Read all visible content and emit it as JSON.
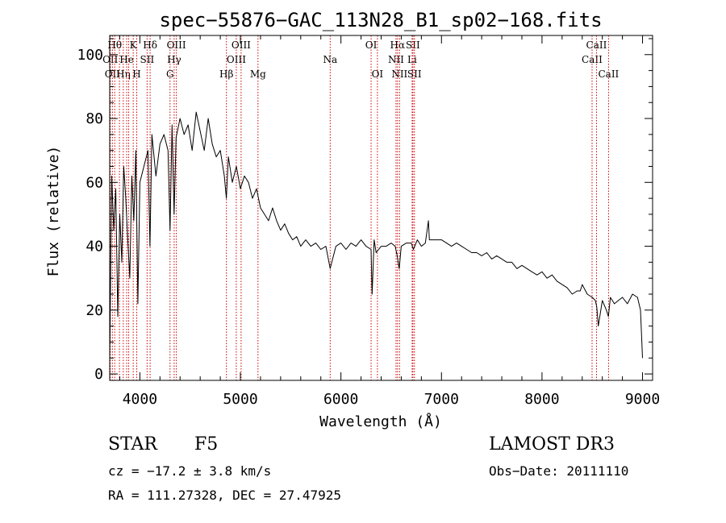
{
  "chart_data": {
    "type": "line",
    "title": "spec−55876−GAC_113N28_B1_sp02−168.fits",
    "xlabel": "Wavelength (Å)",
    "ylabel": "Flux (relative)",
    "xlim": [
      3700,
      9100
    ],
    "ylim": [
      -2,
      106
    ],
    "x_ticks": [
      4000,
      5000,
      6000,
      7000,
      8000,
      9000
    ],
    "y_ticks": [
      0,
      20,
      40,
      60,
      80,
      100
    ],
    "grid": false,
    "line_color": "#000000",
    "marker_color": "#cc0000",
    "series": [
      {
        "name": "flux",
        "x": [
          3700,
          3720,
          3740,
          3760,
          3780,
          3800,
          3820,
          3840,
          3860,
          3880,
          3900,
          3920,
          3940,
          3960,
          3980,
          4000,
          4040,
          4080,
          4100,
          4120,
          4160,
          4200,
          4240,
          4280,
          4300,
          4320,
          4340,
          4360,
          4400,
          4440,
          4480,
          4520,
          4560,
          4600,
          4640,
          4680,
          4720,
          4760,
          4800,
          4840,
          4860,
          4880,
          4920,
          4960,
          5000,
          5040,
          5080,
          5120,
          5160,
          5200,
          5240,
          5280,
          5320,
          5360,
          5400,
          5440,
          5480,
          5520,
          5560,
          5600,
          5650,
          5700,
          5750,
          5800,
          5850,
          5893,
          5950,
          6000,
          6050,
          6100,
          6150,
          6200,
          6250,
          6300,
          6310,
          6330,
          6350,
          6400,
          6450,
          6500,
          6540,
          6560,
          6580,
          6600,
          6650,
          6700,
          6720,
          6760,
          6800,
          6840,
          6870,
          6880,
          6900,
          6950,
          7000,
          7050,
          7100,
          7150,
          7200,
          7250,
          7300,
          7350,
          7400,
          7450,
          7500,
          7550,
          7600,
          7650,
          7700,
          7750,
          7800,
          7850,
          7900,
          7950,
          8000,
          8050,
          8100,
          8150,
          8200,
          8250,
          8300,
          8350,
          8380,
          8400,
          8450,
          8500,
          8530,
          8545,
          8560,
          8600,
          8640,
          8660,
          8680,
          8720,
          8760,
          8800,
          8850,
          8900,
          8950,
          8980,
          9000
        ],
        "y": [
          5,
          62,
          45,
          58,
          18,
          50,
          35,
          65,
          55,
          42,
          30,
          62,
          48,
          70,
          22,
          60,
          65,
          70,
          40,
          75,
          62,
          72,
          75,
          70,
          45,
          78,
          50,
          74,
          80,
          75,
          78,
          70,
          82,
          76,
          70,
          80,
          72,
          68,
          70,
          62,
          55,
          68,
          60,
          65,
          58,
          62,
          60,
          55,
          58,
          52,
          50,
          48,
          52,
          48,
          45,
          47,
          44,
          42,
          43,
          40,
          42,
          40,
          41,
          39,
          40,
          33,
          40,
          41,
          39,
          41,
          40,
          42,
          40,
          39,
          25,
          42,
          38,
          40,
          40,
          41,
          40,
          37,
          33,
          40,
          41,
          41,
          39,
          42,
          40,
          41,
          48,
          42,
          42,
          42,
          42,
          41,
          40,
          41,
          40,
          39,
          38,
          38,
          37,
          38,
          36,
          37,
          36,
          35,
          35,
          33,
          34,
          33,
          32,
          31,
          32,
          30,
          31,
          29,
          28,
          27,
          25,
          26,
          26,
          28,
          25,
          24,
          23,
          21,
          15,
          23,
          20,
          18,
          24,
          22,
          23,
          24,
          22,
          25,
          24,
          20,
          5
        ]
      }
    ],
    "line_markers": [
      {
        "x": 3706,
        "label": "OII",
        "row": 1
      },
      {
        "x": 3727,
        "label": "OII",
        "row": 2
      },
      {
        "x": 3750,
        "label": "Hθ",
        "row": 0
      },
      {
        "x": 3797,
        "label": "",
        "row": -1
      },
      {
        "x": 3835,
        "label": "Hη",
        "row": 2
      },
      {
        "x": 3869,
        "label": "He",
        "row": 1
      },
      {
        "x": 3889,
        "label": "",
        "row": -1
      },
      {
        "x": 3934,
        "label": "K",
        "row": 0
      },
      {
        "x": 3969,
        "label": "H",
        "row": 2
      },
      {
        "x": 4072,
        "label": "SII",
        "row": 1
      },
      {
        "x": 4102,
        "label": "Hδ",
        "row": 0
      },
      {
        "x": 4300,
        "label": "G",
        "row": 2
      },
      {
        "x": 4341,
        "label": "Hγ",
        "row": 1
      },
      {
        "x": 4363,
        "label": "OIII",
        "row": 0
      },
      {
        "x": 4861,
        "label": "Hβ",
        "row": 2
      },
      {
        "x": 4959,
        "label": "OIII",
        "row": 1
      },
      {
        "x": 5007,
        "label": "OIII",
        "row": 0
      },
      {
        "x": 5175,
        "label": "Mg",
        "row": 2
      },
      {
        "x": 5893,
        "label": "Na",
        "row": 1
      },
      {
        "x": 6300,
        "label": "OI",
        "row": 0
      },
      {
        "x": 6363,
        "label": "OI",
        "row": 2
      },
      {
        "x": 6548,
        "label": "NII",
        "row": 1
      },
      {
        "x": 6563,
        "label": "Hα",
        "row": 0
      },
      {
        "x": 6583,
        "label": "NII",
        "row": 2
      },
      {
        "x": 6708,
        "label": "Li",
        "row": 1
      },
      {
        "x": 6716,
        "label": "SII",
        "row": 0
      },
      {
        "x": 6731,
        "label": "SII",
        "row": 2
      },
      {
        "x": 8498,
        "label": "CaII",
        "row": 1
      },
      {
        "x": 8542,
        "label": "CaII",
        "row": 0
      },
      {
        "x": 8662,
        "label": "CaII",
        "row": 2
      }
    ]
  },
  "footer": {
    "object_class": "STAR",
    "subclass": "F5",
    "survey": "LAMOST DR3",
    "cz": "cz = −17.2 ± 3.8 km/s",
    "obs_date": "Obs−Date: 20111110",
    "coords": "RA = 111.27328, DEC =  27.47925"
  }
}
